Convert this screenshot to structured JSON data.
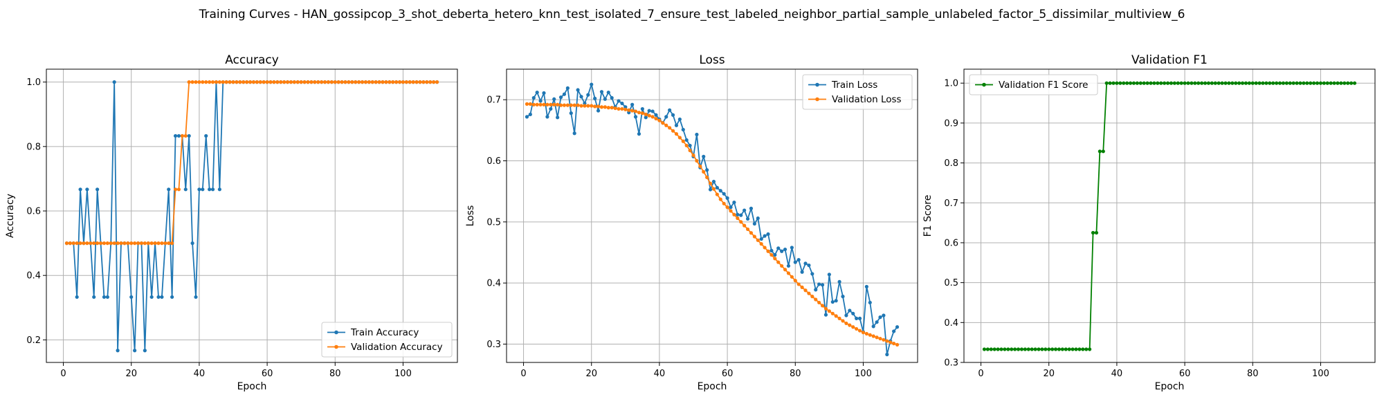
{
  "figure": {
    "suptitle": "Training Curves - HAN_gossipcop_3_shot_deberta_hetero_knn_test_isolated_7_ensure_test_labeled_neighbor_partial_sample_unlabeled_factor_5_dissimilar_multiview_6"
  },
  "colors": {
    "blue": "#1f77b4",
    "orange": "#ff7f0e",
    "green": "#008000",
    "grid": "#b0b0b0"
  },
  "chart_data": [
    {
      "type": "line",
      "title": "Accuracy",
      "xlabel": "Epoch",
      "ylabel": "Accuracy",
      "xlim": [
        -5,
        116
      ],
      "ylim": [
        0.13,
        1.04
      ],
      "xticks": [
        0,
        20,
        40,
        60,
        80,
        100
      ],
      "yticks": [
        0.2,
        0.4,
        0.6,
        0.8,
        1.0
      ],
      "ytick_labels": [
        "0.2",
        "0.4",
        "0.6",
        "0.8",
        "1.0"
      ],
      "grid": true,
      "legend_position": "lower-right",
      "x": [
        1,
        2,
        3,
        4,
        5,
        6,
        7,
        8,
        9,
        10,
        11,
        12,
        13,
        14,
        15,
        16,
        17,
        18,
        19,
        20,
        21,
        22,
        23,
        24,
        25,
        26,
        27,
        28,
        29,
        30,
        31,
        32,
        33,
        34,
        35,
        36,
        37,
        38,
        39,
        40,
        41,
        42,
        43,
        44,
        45,
        46,
        47,
        48,
        49,
        50,
        51,
        52,
        53,
        54,
        55,
        56,
        57,
        58,
        59,
        60,
        61,
        62,
        63,
        64,
        65,
        66,
        67,
        68,
        69,
        70,
        71,
        72,
        73,
        74,
        75,
        76,
        77,
        78,
        79,
        80,
        81,
        82,
        83,
        84,
        85,
        86,
        87,
        88,
        89,
        90,
        91,
        92,
        93,
        94,
        95,
        96,
        97,
        98,
        99,
        100,
        101,
        102,
        103,
        104,
        105,
        106,
        107,
        108,
        109,
        110
      ],
      "series": [
        {
          "name": "Train Accuracy",
          "color": "#1f77b4",
          "values": [
            0.5,
            0.5,
            0.5,
            0.333,
            0.667,
            0.5,
            0.667,
            0.5,
            0.333,
            0.667,
            0.5,
            0.333,
            0.333,
            0.5,
            1.0,
            0.167,
            0.5,
            0.5,
            0.5,
            0.333,
            0.167,
            0.5,
            0.5,
            0.167,
            0.5,
            0.333,
            0.5,
            0.333,
            0.333,
            0.5,
            0.667,
            0.333,
            0.833,
            0.833,
            0.833,
            0.667,
            0.833,
            0.5,
            0.333,
            0.667,
            0.667,
            0.833,
            0.667,
            0.667,
            1.0,
            0.667,
            1.0,
            1.0,
            1.0,
            1.0,
            1.0,
            1.0,
            1.0,
            1.0,
            1.0,
            1.0,
            1.0,
            1.0,
            1.0,
            1.0,
            1.0,
            1.0,
            1.0,
            1.0,
            1.0,
            1.0,
            1.0,
            1.0,
            1.0,
            1.0,
            1.0,
            1.0,
            1.0,
            1.0,
            1.0,
            1.0,
            1.0,
            1.0,
            1.0,
            1.0,
            1.0,
            1.0,
            1.0,
            1.0,
            1.0,
            1.0,
            1.0,
            1.0,
            1.0,
            1.0,
            1.0,
            1.0,
            1.0,
            1.0,
            1.0,
            1.0,
            1.0,
            1.0,
            1.0,
            1.0,
            1.0,
            1.0,
            1.0,
            1.0,
            1.0,
            1.0,
            1.0,
            1.0,
            1.0,
            1.0
          ]
        },
        {
          "name": "Validation Accuracy",
          "color": "#ff7f0e",
          "values": [
            0.5,
            0.5,
            0.5,
            0.5,
            0.5,
            0.5,
            0.5,
            0.5,
            0.5,
            0.5,
            0.5,
            0.5,
            0.5,
            0.5,
            0.5,
            0.5,
            0.5,
            0.5,
            0.5,
            0.5,
            0.5,
            0.5,
            0.5,
            0.5,
            0.5,
            0.5,
            0.5,
            0.5,
            0.5,
            0.5,
            0.5,
            0.5,
            0.667,
            0.667,
            0.833,
            0.833,
            1.0,
            1.0,
            1.0,
            1.0,
            1.0,
            1.0,
            1.0,
            1.0,
            1.0,
            1.0,
            1.0,
            1.0,
            1.0,
            1.0,
            1.0,
            1.0,
            1.0,
            1.0,
            1.0,
            1.0,
            1.0,
            1.0,
            1.0,
            1.0,
            1.0,
            1.0,
            1.0,
            1.0,
            1.0,
            1.0,
            1.0,
            1.0,
            1.0,
            1.0,
            1.0,
            1.0,
            1.0,
            1.0,
            1.0,
            1.0,
            1.0,
            1.0,
            1.0,
            1.0,
            1.0,
            1.0,
            1.0,
            1.0,
            1.0,
            1.0,
            1.0,
            1.0,
            1.0,
            1.0,
            1.0,
            1.0,
            1.0,
            1.0,
            1.0,
            1.0,
            1.0,
            1.0,
            1.0,
            1.0,
            1.0,
            1.0,
            1.0,
            1.0,
            1.0,
            1.0,
            1.0,
            1.0,
            1.0,
            1.0
          ]
        }
      ]
    },
    {
      "type": "line",
      "title": "Loss",
      "xlabel": "Epoch",
      "ylabel": "Loss",
      "xlim": [
        -5,
        116
      ],
      "ylim": [
        0.27,
        0.75
      ],
      "xticks": [
        0,
        20,
        40,
        60,
        80,
        100
      ],
      "yticks": [
        0.3,
        0.4,
        0.5,
        0.6,
        0.7
      ],
      "ytick_labels": [
        "0.3",
        "0.4",
        "0.5",
        "0.6",
        "0.7"
      ],
      "grid": true,
      "legend_position": "upper-right",
      "x": [
        1,
        2,
        3,
        4,
        5,
        6,
        7,
        8,
        9,
        10,
        11,
        12,
        13,
        14,
        15,
        16,
        17,
        18,
        19,
        20,
        21,
        22,
        23,
        24,
        25,
        26,
        27,
        28,
        29,
        30,
        31,
        32,
        33,
        34,
        35,
        36,
        37,
        38,
        39,
        40,
        41,
        42,
        43,
        44,
        45,
        46,
        47,
        48,
        49,
        50,
        51,
        52,
        53,
        54,
        55,
        56,
        57,
        58,
        59,
        60,
        61,
        62,
        63,
        64,
        65,
        66,
        67,
        68,
        69,
        70,
        71,
        72,
        73,
        74,
        75,
        76,
        77,
        78,
        79,
        80,
        81,
        82,
        83,
        84,
        85,
        86,
        87,
        88,
        89,
        90,
        91,
        92,
        93,
        94,
        95,
        96,
        97,
        98,
        99,
        100,
        101,
        102,
        103,
        104,
        105,
        106,
        107,
        108,
        109,
        110
      ],
      "series": [
        {
          "name": "Train Loss",
          "color": "#1f77b4",
          "values": [
            0.672,
            0.676,
            0.703,
            0.712,
            0.698,
            0.711,
            0.672,
            0.685,
            0.701,
            0.671,
            0.704,
            0.709,
            0.719,
            0.678,
            0.645,
            0.716,
            0.705,
            0.694,
            0.708,
            0.725,
            0.702,
            0.682,
            0.713,
            0.701,
            0.712,
            0.703,
            0.688,
            0.698,
            0.694,
            0.688,
            0.679,
            0.692,
            0.672,
            0.644,
            0.685,
            0.671,
            0.682,
            0.681,
            0.675,
            0.668,
            0.662,
            0.672,
            0.683,
            0.675,
            0.658,
            0.668,
            0.651,
            0.634,
            0.625,
            0.607,
            0.643,
            0.589,
            0.607,
            0.585,
            0.553,
            0.566,
            0.556,
            0.551,
            0.546,
            0.539,
            0.524,
            0.532,
            0.512,
            0.511,
            0.519,
            0.505,
            0.522,
            0.497,
            0.506,
            0.472,
            0.477,
            0.48,
            0.453,
            0.446,
            0.457,
            0.452,
            0.455,
            0.428,
            0.458,
            0.434,
            0.438,
            0.418,
            0.432,
            0.429,
            0.415,
            0.389,
            0.398,
            0.397,
            0.348,
            0.414,
            0.369,
            0.371,
            0.402,
            0.378,
            0.347,
            0.355,
            0.35,
            0.342,
            0.342,
            0.32,
            0.394,
            0.368,
            0.329,
            0.336,
            0.344,
            0.347,
            0.283,
            0.305,
            0.321,
            0.328
          ]
        },
        {
          "name": "Validation Loss",
          "color": "#ff7f0e",
          "values": [
            0.693,
            0.693,
            0.692,
            0.692,
            0.692,
            0.692,
            0.692,
            0.692,
            0.692,
            0.692,
            0.691,
            0.691,
            0.691,
            0.691,
            0.691,
            0.691,
            0.69,
            0.69,
            0.69,
            0.69,
            0.689,
            0.689,
            0.688,
            0.688,
            0.687,
            0.687,
            0.686,
            0.685,
            0.685,
            0.684,
            0.683,
            0.682,
            0.681,
            0.679,
            0.678,
            0.676,
            0.674,
            0.672,
            0.669,
            0.666,
            0.662,
            0.658,
            0.654,
            0.649,
            0.644,
            0.638,
            0.632,
            0.625,
            0.617,
            0.609,
            0.6,
            0.591,
            0.582,
            0.573,
            0.563,
            0.554,
            0.545,
            0.537,
            0.53,
            0.524,
            0.518,
            0.512,
            0.506,
            0.5,
            0.494,
            0.488,
            0.482,
            0.476,
            0.47,
            0.464,
            0.458,
            0.452,
            0.446,
            0.44,
            0.434,
            0.428,
            0.422,
            0.416,
            0.41,
            0.404,
            0.398,
            0.393,
            0.388,
            0.383,
            0.378,
            0.373,
            0.368,
            0.363,
            0.358,
            0.354,
            0.35,
            0.346,
            0.342,
            0.338,
            0.334,
            0.331,
            0.328,
            0.325,
            0.322,
            0.319,
            0.317,
            0.315,
            0.313,
            0.311,
            0.309,
            0.307,
            0.305,
            0.303,
            0.301,
            0.299
          ]
        }
      ]
    },
    {
      "type": "line",
      "title": "Validation F1",
      "xlabel": "Epoch",
      "ylabel": "F1 Score",
      "xlim": [
        -5,
        116
      ],
      "ylim": [
        0.3,
        1.035
      ],
      "xticks": [
        0,
        20,
        40,
        60,
        80,
        100
      ],
      "yticks": [
        0.3,
        0.4,
        0.5,
        0.6,
        0.7,
        0.8,
        0.9,
        1.0
      ],
      "ytick_labels": [
        "0.3",
        "0.4",
        "0.5",
        "0.6",
        "0.7",
        "0.8",
        "0.9",
        "1.0"
      ],
      "grid": true,
      "legend_position": "upper-left",
      "x": [
        1,
        2,
        3,
        4,
        5,
        6,
        7,
        8,
        9,
        10,
        11,
        12,
        13,
        14,
        15,
        16,
        17,
        18,
        19,
        20,
        21,
        22,
        23,
        24,
        25,
        26,
        27,
        28,
        29,
        30,
        31,
        32,
        33,
        34,
        35,
        36,
        37,
        38,
        39,
        40,
        41,
        42,
        43,
        44,
        45,
        46,
        47,
        48,
        49,
        50,
        51,
        52,
        53,
        54,
        55,
        56,
        57,
        58,
        59,
        60,
        61,
        62,
        63,
        64,
        65,
        66,
        67,
        68,
        69,
        70,
        71,
        72,
        73,
        74,
        75,
        76,
        77,
        78,
        79,
        80,
        81,
        82,
        83,
        84,
        85,
        86,
        87,
        88,
        89,
        90,
        91,
        92,
        93,
        94,
        95,
        96,
        97,
        98,
        99,
        100,
        101,
        102,
        103,
        104,
        105,
        106,
        107,
        108,
        109,
        110
      ],
      "series": [
        {
          "name": "Validation F1 Score",
          "color": "#008000",
          "values": [
            0.333,
            0.333,
            0.333,
            0.333,
            0.333,
            0.333,
            0.333,
            0.333,
            0.333,
            0.333,
            0.333,
            0.333,
            0.333,
            0.333,
            0.333,
            0.333,
            0.333,
            0.333,
            0.333,
            0.333,
            0.333,
            0.333,
            0.333,
            0.333,
            0.333,
            0.333,
            0.333,
            0.333,
            0.333,
            0.333,
            0.333,
            0.333,
            0.625,
            0.625,
            0.829,
            0.829,
            1.0,
            1.0,
            1.0,
            1.0,
            1.0,
            1.0,
            1.0,
            1.0,
            1.0,
            1.0,
            1.0,
            1.0,
            1.0,
            1.0,
            1.0,
            1.0,
            1.0,
            1.0,
            1.0,
            1.0,
            1.0,
            1.0,
            1.0,
            1.0,
            1.0,
            1.0,
            1.0,
            1.0,
            1.0,
            1.0,
            1.0,
            1.0,
            1.0,
            1.0,
            1.0,
            1.0,
            1.0,
            1.0,
            1.0,
            1.0,
            1.0,
            1.0,
            1.0,
            1.0,
            1.0,
            1.0,
            1.0,
            1.0,
            1.0,
            1.0,
            1.0,
            1.0,
            1.0,
            1.0,
            1.0,
            1.0,
            1.0,
            1.0,
            1.0,
            1.0,
            1.0,
            1.0,
            1.0,
            1.0,
            1.0,
            1.0,
            1.0,
            1.0,
            1.0,
            1.0,
            1.0,
            1.0,
            1.0,
            1.0
          ]
        }
      ]
    }
  ]
}
